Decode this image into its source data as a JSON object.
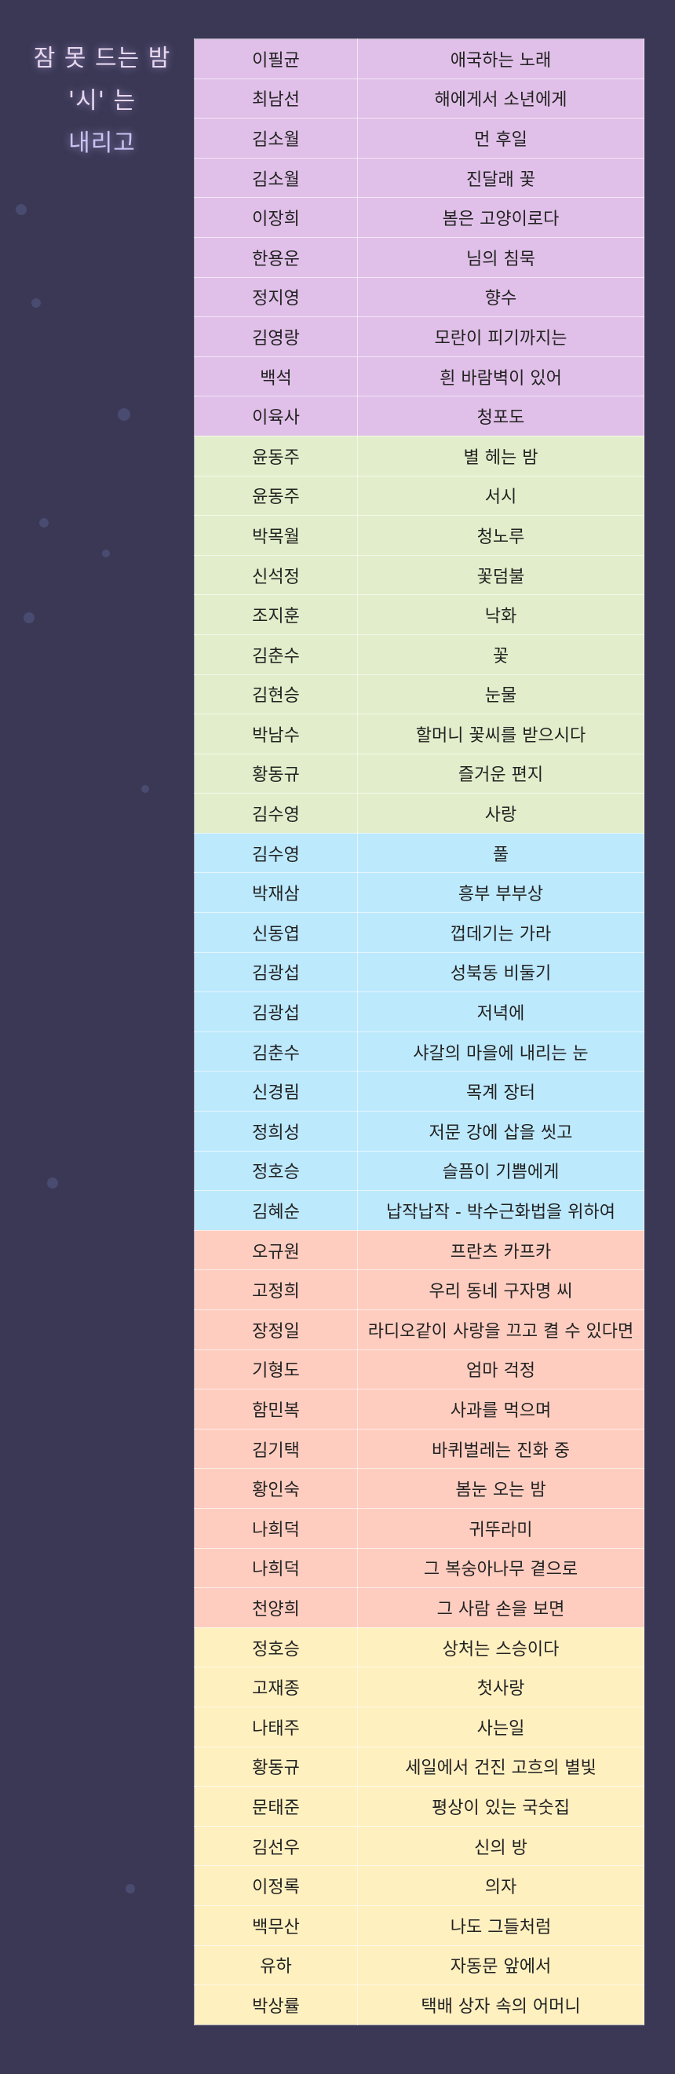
{
  "title": {
    "line1": "잠 못 드는 밤",
    "line2": "'시' 는",
    "line3": "내리고"
  },
  "groups": [
    {
      "color": "#e0c0e8",
      "rows": [
        [
          "이필균",
          "애국하는 노래"
        ],
        [
          "최남선",
          "해에게서 소년에게"
        ],
        [
          "김소월",
          "먼 후일"
        ],
        [
          "김소월",
          "진달래 꽃"
        ],
        [
          "이장희",
          "봄은 고양이로다"
        ],
        [
          "한용운",
          "님의 침묵"
        ],
        [
          "정지영",
          "향수"
        ],
        [
          "김영랑",
          "모란이 피기까지는"
        ],
        [
          "백석",
          "흰 바람벽이 있어"
        ],
        [
          "이육사",
          "청포도"
        ]
      ]
    },
    {
      "color": "#e2eecb",
      "rows": [
        [
          "윤동주",
          "별 헤는 밤"
        ],
        [
          "윤동주",
          "서시"
        ],
        [
          "박목월",
          "청노루"
        ],
        [
          "신석정",
          "꽃덤불"
        ],
        [
          "조지훈",
          "낙화"
        ],
        [
          "김춘수",
          "꽃"
        ],
        [
          "김현승",
          "눈물"
        ],
        [
          "박남수",
          "할머니 꽃씨를 받으시다"
        ],
        [
          "황동규",
          "즐거운 편지"
        ],
        [
          "김수영",
          "사랑"
        ]
      ]
    },
    {
      "color": "#bde9fd",
      "rows": [
        [
          "김수영",
          "풀"
        ],
        [
          "박재삼",
          "흥부 부부상"
        ],
        [
          "신동엽",
          "껍데기는 가라"
        ],
        [
          "김광섭",
          "성북동 비둘기"
        ],
        [
          "김광섭",
          "저녁에"
        ],
        [
          "김춘수",
          "샤갈의 마을에 내리는 눈"
        ],
        [
          "신경림",
          "목계 장터"
        ],
        [
          "정희성",
          "저문 강에 삽을 씻고"
        ],
        [
          "정호승",
          "슬픔이 기쁨에게"
        ],
        [
          "김혜순",
          "납작납작 - 박수근화법을 위하여"
        ]
      ]
    },
    {
      "color": "#ffcdc0",
      "rows": [
        [
          "오규원",
          "프란츠 카프카"
        ],
        [
          "고정희",
          "우리 동네 구자명 씨"
        ],
        [
          "장정일",
          "라디오같이 사랑을 끄고 켤 수 있다면"
        ],
        [
          "기형도",
          "엄마 걱정"
        ],
        [
          "함민복",
          "사과를 먹으며"
        ],
        [
          "김기택",
          "바퀴벌레는 진화 중"
        ],
        [
          "황인숙",
          "봄눈 오는 밤"
        ],
        [
          "나희덕",
          "귀뚜라미"
        ],
        [
          "나희덕",
          "그 복숭아나무 곁으로"
        ],
        [
          "천양희",
          "그 사람 손을 보면"
        ]
      ]
    },
    {
      "color": "#fff0c0",
      "rows": [
        [
          "정호승",
          "상처는 스승이다"
        ],
        [
          "고재종",
          "첫사랑"
        ],
        [
          "나태주",
          "사는일"
        ],
        [
          "황동규",
          "세일에서 건진 고흐의 별빛"
        ],
        [
          "문태준",
          "평상이 있는 국숫집"
        ],
        [
          "김선우",
          "신의 방"
        ],
        [
          "이정록",
          "의자"
        ],
        [
          "백무산",
          "나도 그들처럼"
        ],
        [
          "유하",
          "자동문 앞에서"
        ],
        [
          "박상률",
          "택배 상자 속의 어머니"
        ]
      ]
    }
  ]
}
